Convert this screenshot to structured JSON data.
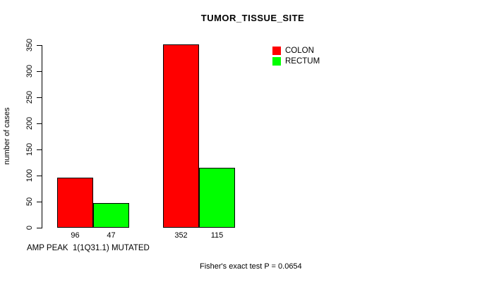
{
  "title": "TUMOR_TISSUE_SITE",
  "chart_data": {
    "type": "bar",
    "title": "TUMOR_TISSUE_SITE",
    "ylabel": "number of cases",
    "xlabel": "AMP PEAK  1(1Q31.1) MUTATED",
    "ylim": [
      0,
      350
    ],
    "yticks": [
      0,
      50,
      100,
      150,
      200,
      250,
      300,
      350
    ],
    "grid": false,
    "legend_position": "top-right",
    "series": [
      {
        "name": "COLON",
        "color": "#ff0000",
        "values": [
          96,
          352
        ]
      },
      {
        "name": "RECTUM",
        "color": "#00ff00",
        "values": [
          47,
          115
        ]
      }
    ],
    "bar_value_labels": [
      [
        "96",
        "47"
      ],
      [
        "352",
        "115"
      ]
    ],
    "annotation": "Fisher's exact test P = 0.0654"
  },
  "colors": {
    "colon": "#ff0000",
    "rectum": "#00ff00",
    "axis": "#000000",
    "background": "#ffffff"
  }
}
